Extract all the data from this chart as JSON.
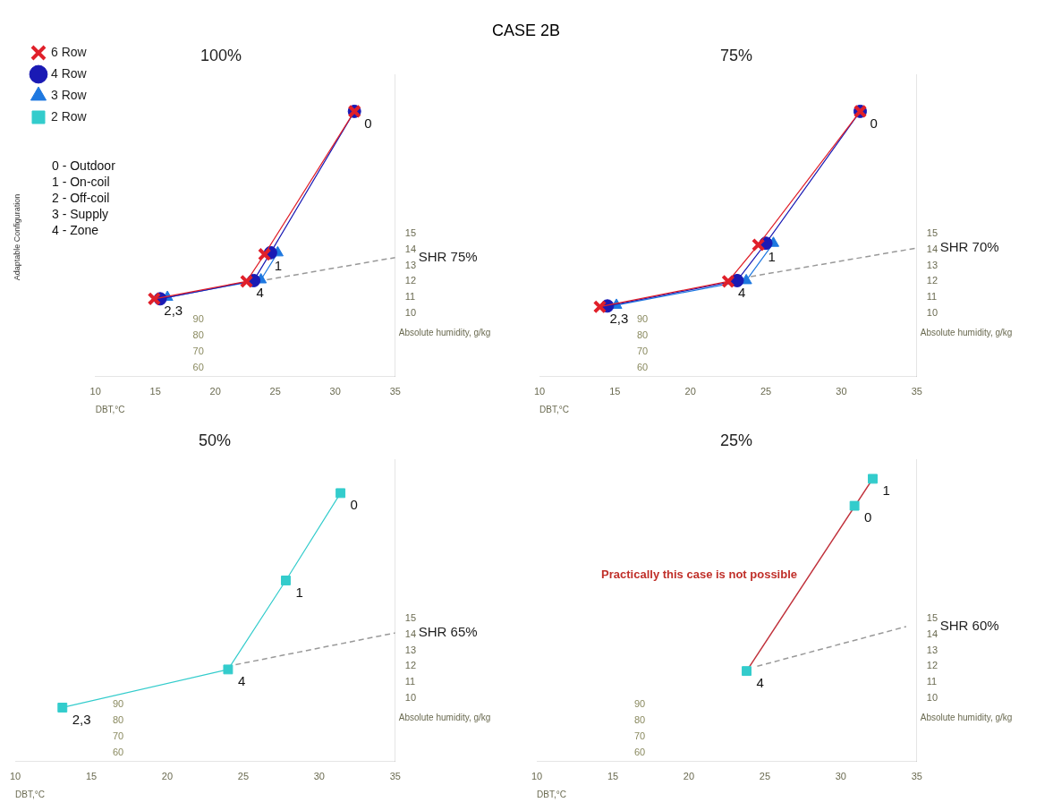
{
  "chart_data": [
    {
      "type": "other",
      "title": "CASE 2B",
      "annotations": [
        "0 - Outdoor",
        "1 - On-coil",
        "2 - Off-coil",
        "3 - Supply",
        "4 - Zone"
      ]
    },
    {
      "type": "scatter",
      "title": "100%",
      "xlabel": "DBT,°C",
      "ylabel": "Absolute humidity, g/kg",
      "xlim": [
        10,
        35
      ],
      "ylim": [
        6,
        25
      ],
      "xticks": [
        10,
        15,
        20,
        25,
        30,
        35
      ],
      "yticks": [
        10,
        11,
        12,
        13,
        14,
        15
      ],
      "legend": "top left",
      "legend_title": "Adaptable Configuration",
      "series": [
        {
          "name": "6 Row",
          "color": "#e0202a",
          "marker": "cross",
          "line_style": "solid",
          "x": [
            31.6,
            24.1,
            22.6,
            14.9
          ],
          "values": [
            22.7,
            13.7,
            12.0,
            10.9
          ]
        },
        {
          "name": "4 Row",
          "color": "#1a1ab4",
          "marker": "circle",
          "line_style": "solid",
          "x": [
            31.6,
            24.6,
            23.2,
            15.4
          ],
          "values": [
            22.7,
            13.8,
            12.05,
            10.9
          ]
        },
        {
          "name": "3 Row",
          "color": "#1e78e0",
          "marker": "triangle",
          "line_style": "solid",
          "x": [
            25.2,
            23.8,
            16.0
          ],
          "values": [
            13.8,
            12.1,
            11.0
          ]
        },
        {
          "name": "2 Row",
          "color": "#33cccc",
          "marker": "square",
          "line_style": "solid"
        },
        {
          "name": "SHR 75%",
          "type": "line",
          "color": "#999999",
          "marker": "none",
          "line_style": "dashed",
          "x": [
            24.3,
            35
          ],
          "values": [
            12.1,
            13.5
          ]
        }
      ],
      "annotations": [
        {
          "text": "0",
          "x": 31.6,
          "y": 22.7
        },
        {
          "text": "1",
          "x": 24.1,
          "y": 13.7
        },
        {
          "text": "4",
          "x": 22.6,
          "y": 12.0
        },
        {
          "text": "2,3",
          "x": 14.9,
          "y": 10.9
        },
        "90",
        "80",
        "70",
        "60"
      ]
    },
    {
      "type": "scatter",
      "title": "75%",
      "xlabel": "DBT,°C",
      "ylabel": "Absolute humidity, g/kg",
      "xlim": [
        10,
        35
      ],
      "ylim": [
        6,
        25
      ],
      "xticks": [
        10,
        15,
        20,
        25,
        30,
        35
      ],
      "yticks": [
        10,
        11,
        12,
        13,
        14,
        15
      ],
      "series": [
        {
          "color": "#e0202a",
          "marker": "cross",
          "line_style": "solid",
          "x": [
            31.25,
            24.5,
            22.5,
            14.0
          ],
          "values": [
            22.7,
            14.3,
            12.0,
            10.4
          ]
        },
        {
          "color": "#1a1ab4",
          "marker": "circle",
          "line_style": "solid",
          "x": [
            31.25,
            25.0,
            23.1,
            14.5
          ],
          "values": [
            22.7,
            14.4,
            12.05,
            10.45
          ]
        },
        {
          "color": "#1e78e0",
          "marker": "triangle",
          "line_style": "solid",
          "x": [
            25.5,
            23.7,
            15.1
          ],
          "values": [
            14.4,
            12.05,
            10.5
          ]
        },
        {
          "name": "SHR 70%",
          "type": "line",
          "color": "#999999",
          "marker": "none",
          "line_style": "dashed",
          "x": [
            24.0,
            35
          ],
          "values": [
            12.3,
            14.1
          ]
        }
      ],
      "annotations": [
        {
          "text": "0",
          "x": 31.25,
          "y": 22.7
        },
        {
          "text": "1",
          "x": 24.5,
          "y": 14.3
        },
        {
          "text": "4",
          "x": 22.5,
          "y": 12.0
        },
        {
          "text": "2,3",
          "x": 14.0,
          "y": 10.4
        },
        "90",
        "80",
        "70",
        "60"
      ]
    },
    {
      "type": "scatter",
      "title": "50%",
      "xlabel": "DBT,°C",
      "ylabel": "Absolute humidity, g/kg",
      "xlim": [
        10,
        35
      ],
      "ylim": [
        6,
        25
      ],
      "xticks": [
        10,
        15,
        20,
        25,
        30,
        35
      ],
      "yticks": [
        10,
        11,
        12,
        13,
        14,
        15
      ],
      "series": [
        {
          "color": "#33cccc",
          "marker": "square",
          "line_style": "solid",
          "x": [
            31.4,
            27.8,
            24.0,
            13.1
          ],
          "values": [
            22.9,
            17.4,
            11.8,
            9.4
          ]
        },
        {
          "name": "SHR 65%",
          "type": "line",
          "color": "#999999",
          "marker": "none",
          "line_style": "dashed",
          "x": [
            24.5,
            35
          ],
          "values": [
            12.1,
            14.1
          ]
        }
      ],
      "annotations": [
        {
          "text": "0",
          "x": 31.4,
          "y": 22.9
        },
        {
          "text": "1",
          "x": 27.8,
          "y": 17.4
        },
        {
          "text": "4",
          "x": 24.0,
          "y": 11.8
        },
        {
          "text": "2,3",
          "x": 13.1,
          "y": 9.4
        },
        "90",
        "80",
        "70",
        "60"
      ]
    },
    {
      "type": "scatter",
      "title": "25%",
      "xlabel": "DBT,°C",
      "ylabel": "Absolute humidity, g/kg",
      "xlim": [
        10,
        35
      ],
      "ylim": [
        6,
        25
      ],
      "xticks": [
        10,
        15,
        20,
        25,
        30,
        35
      ],
      "yticks": [
        10,
        11,
        12,
        13,
        14,
        15
      ],
      "series": [
        {
          "type": "line",
          "color": "#c0303a",
          "marker": "none",
          "line_style": "solid",
          "x": [
            23.8,
            32.1
          ],
          "values": [
            11.7,
            23.8
          ]
        },
        {
          "color": "#33cccc",
          "marker": "square",
          "x": [
            30.9,
            32.1,
            23.8
          ],
          "values": [
            22.1,
            23.8,
            11.7
          ]
        },
        {
          "name": "SHR 60%",
          "type": "line",
          "color": "#999999",
          "marker": "none",
          "line_style": "dashed",
          "x": [
            24.5,
            34.3
          ],
          "values": [
            12.0,
            14.5
          ]
        }
      ],
      "annotations": [
        {
          "text": "0",
          "x": 30.9,
          "y": 22.1
        },
        {
          "text": "1",
          "x": 32.1,
          "y": 23.8
        },
        {
          "text": "4",
          "x": 23.8,
          "y": 11.7
        },
        {
          "text": "Practically this case is not possible",
          "x": 27.95,
          "y": 17.75
        },
        "90",
        "80",
        "70",
        "60"
      ]
    }
  ]
}
